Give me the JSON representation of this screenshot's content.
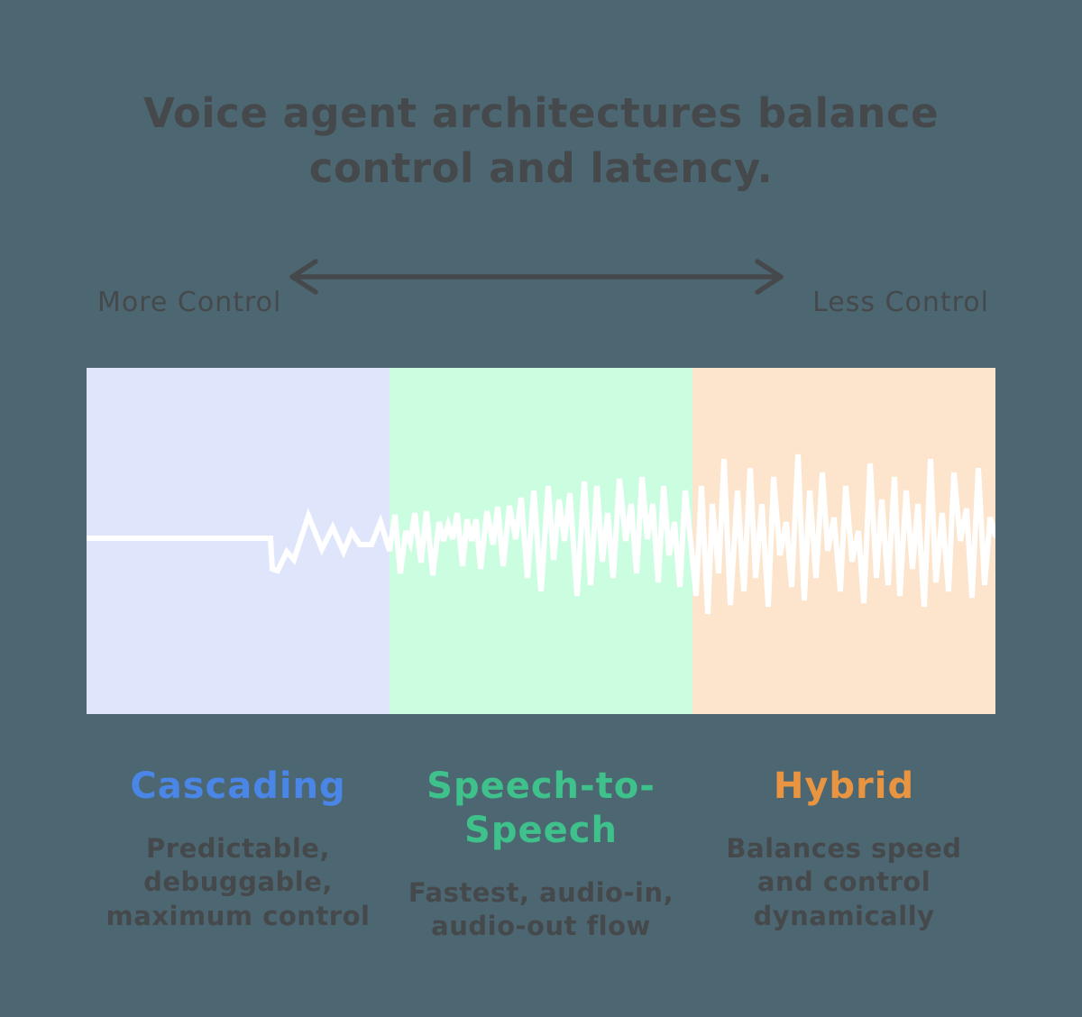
{
  "background": "#4C6771",
  "text_color": "#46494C",
  "title": {
    "text": "Voice agent architectures balance\ncontrol and latency."
  },
  "control_axis": {
    "left_label": "More Control",
    "right_label": "Less Control",
    "arrow_color": "#46494C",
    "arrow_icon": "double-headed-arrow"
  },
  "panels": [
    {
      "id": "cascading",
      "label": "Cascading",
      "label_color": "#4A86E8",
      "panel_color": "#DFE6FB",
      "description": "Predictable,\ndebuggable,\nmaximum control"
    },
    {
      "id": "speech-to-speech",
      "label": "Speech-to-\nSpeech",
      "label_color": "#3EC18A",
      "panel_color": "#CBFDE1",
      "description": "Fastest, audio-in,\naudio-out flow"
    },
    {
      "id": "hybrid",
      "label": "Hybrid",
      "label_color": "#E99440",
      "panel_color": "#FDE4CC",
      "description": "Balances speed\nand control\ndynamically"
    }
  ],
  "waveform": {
    "color": "#FFFFFF",
    "stroke_width": 6,
    "points": [
      [
        0,
        189
      ],
      [
        204,
        189
      ],
      [
        206,
        223
      ],
      [
        212,
        225
      ],
      [
        222,
        204
      ],
      [
        230,
        213
      ],
      [
        246,
        164
      ],
      [
        261,
        201
      ],
      [
        273,
        177
      ],
      [
        285,
        204
      ],
      [
        294,
        182
      ],
      [
        303,
        196
      ],
      [
        316,
        196
      ],
      [
        326,
        171
      ],
      [
        336,
        203
      ],
      [
        342,
        163
      ],
      [
        348,
        228
      ],
      [
        354,
        181
      ],
      [
        359,
        194
      ],
      [
        364,
        161
      ],
      [
        371,
        216
      ],
      [
        377,
        159
      ],
      [
        384,
        230
      ],
      [
        391,
        171
      ],
      [
        396,
        192
      ],
      [
        401,
        174
      ],
      [
        406,
        190
      ],
      [
        411,
        161
      ],
      [
        417,
        220
      ],
      [
        422,
        168
      ],
      [
        427,
        192
      ],
      [
        432,
        168
      ],
      [
        437,
        223
      ],
      [
        444,
        159
      ],
      [
        451,
        196
      ],
      [
        456,
        154
      ],
      [
        462,
        220
      ],
      [
        469,
        153
      ],
      [
        476,
        190
      ],
      [
        482,
        144
      ],
      [
        489,
        233
      ],
      [
        496,
        136
      ],
      [
        504,
        248
      ],
      [
        512,
        131
      ],
      [
        518,
        213
      ],
      [
        524,
        146
      ],
      [
        530,
        192
      ],
      [
        536,
        139
      ],
      [
        544,
        253
      ],
      [
        552,
        126
      ],
      [
        559,
        241
      ],
      [
        566,
        131
      ],
      [
        572,
        215
      ],
      [
        578,
        161
      ],
      [
        584,
        233
      ],
      [
        591,
        123
      ],
      [
        598,
        192
      ],
      [
        604,
        151
      ],
      [
        610,
        228
      ],
      [
        616,
        121
      ],
      [
        622,
        190
      ],
      [
        628,
        151
      ],
      [
        634,
        238
      ],
      [
        640,
        131
      ],
      [
        646,
        208
      ],
      [
        652,
        171
      ],
      [
        658,
        243
      ],
      [
        664,
        136
      ],
      [
        670,
        192
      ],
      [
        676,
        253
      ],
      [
        682,
        131
      ],
      [
        689,
        273
      ],
      [
        694,
        151
      ],
      [
        701,
        228
      ],
      [
        707,
        101
      ],
      [
        714,
        263
      ],
      [
        722,
        136
      ],
      [
        729,
        248
      ],
      [
        736,
        111
      ],
      [
        742,
        233
      ],
      [
        749,
        151
      ],
      [
        756,
        265
      ],
      [
        762,
        121
      ],
      [
        769,
        208
      ],
      [
        776,
        171
      ],
      [
        782,
        243
      ],
      [
        789,
        96
      ],
      [
        796,
        258
      ],
      [
        802,
        136
      ],
      [
        809,
        233
      ],
      [
        816,
        116
      ],
      [
        822,
        203
      ],
      [
        829,
        166
      ],
      [
        836,
        248
      ],
      [
        842,
        131
      ],
      [
        849,
        215
      ],
      [
        856,
        181
      ],
      [
        862,
        261
      ],
      [
        869,
        106
      ],
      [
        876,
        233
      ],
      [
        882,
        146
      ],
      [
        889,
        241
      ],
      [
        896,
        121
      ],
      [
        902,
        253
      ],
      [
        909,
        136
      ],
      [
        916,
        223
      ],
      [
        922,
        151
      ],
      [
        929,
        265
      ],
      [
        936,
        101
      ],
      [
        942,
        238
      ],
      [
        949,
        161
      ],
      [
        956,
        248
      ],
      [
        962,
        116
      ],
      [
        969,
        192
      ],
      [
        976,
        156
      ],
      [
        982,
        255
      ],
      [
        989,
        111
      ],
      [
        996,
        241
      ],
      [
        1002,
        166
      ],
      [
        1008,
        186
      ]
    ]
  }
}
